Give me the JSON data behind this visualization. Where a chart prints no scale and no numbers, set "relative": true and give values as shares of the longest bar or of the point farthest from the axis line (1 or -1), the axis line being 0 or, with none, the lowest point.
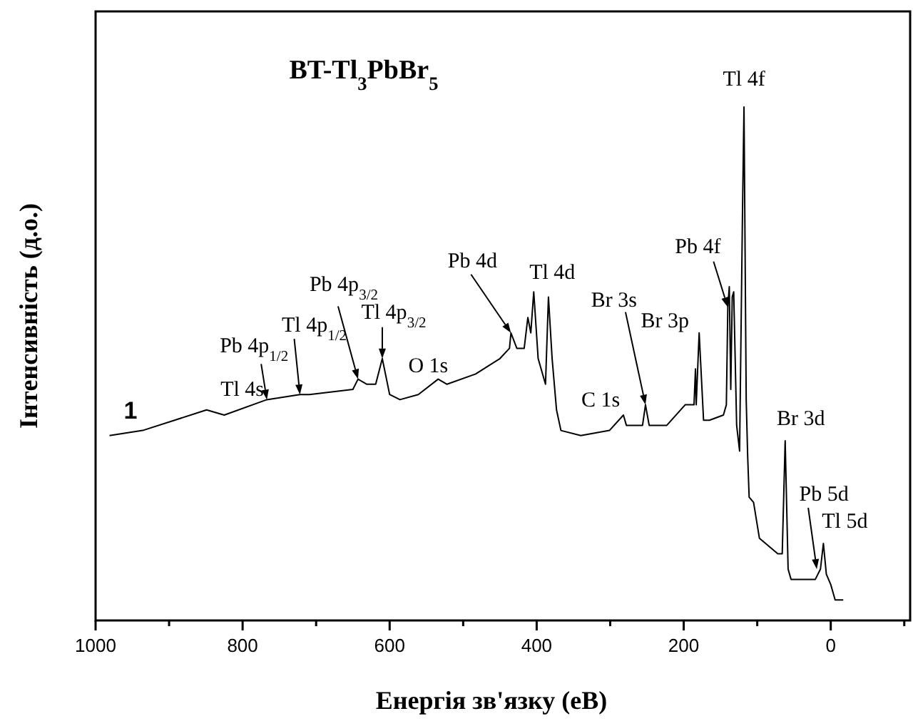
{
  "chart_data": {
    "type": "line",
    "title": "BT-Tl$_{3}$PbBr$_{5}$",
    "xlabel": "Енергія зв'язку (еВ)",
    "ylabel": "Інтенсивність (д.о.)",
    "relative": true,
    "xlim": [
      1000,
      -108
    ],
    "xticks": [
      1000,
      {
        "value": 900,
        "label": null
      },
      800,
      {
        "value": 700,
        "label": null
      },
      600,
      {
        "value": 500,
        "label": null
      },
      400,
      {
        "value": 300,
        "label": null
      },
      200,
      {
        "value": 100,
        "label": null
      },
      0,
      {
        "value": -100,
        "label": null
      }
    ],
    "legend": false,
    "grid": false,
    "marker": "none",
    "line_style": "solid",
    "series": [
      {
        "name": "1",
        "color": "#000000",
        "x": [
          981,
          936,
          849,
          825,
          767,
          722,
          709,
          650,
          643,
          631,
          619,
          610,
          600,
          586,
          561,
          534,
          522,
          483,
          450,
          437,
          435,
          427,
          417,
          412,
          408,
          404,
          398,
          388,
          384,
          379,
          373,
          367,
          340,
          301,
          282,
          278,
          256,
          252,
          247,
          223,
          198,
          186,
          184,
          183,
          179,
          173,
          165,
          146,
          142,
          140,
          138,
          136,
          134,
          132,
          128,
          124,
          120,
          118,
          115,
          113,
          111,
          105,
          97,
          72,
          66,
          62,
          58,
          54,
          21,
          14,
          10,
          6,
          0,
          -6,
          -17
        ],
        "values": [
          0.36,
          0.37,
          0.41,
          0.4,
          0.43,
          0.44,
          0.44,
          0.45,
          0.47,
          0.46,
          0.46,
          0.51,
          0.44,
          0.43,
          0.44,
          0.47,
          0.46,
          0.48,
          0.51,
          0.53,
          0.56,
          0.53,
          0.53,
          0.59,
          0.56,
          0.64,
          0.51,
          0.46,
          0.63,
          0.51,
          0.41,
          0.37,
          0.36,
          0.37,
          0.4,
          0.38,
          0.38,
          0.42,
          0.38,
          0.38,
          0.42,
          0.42,
          0.49,
          0.42,
          0.56,
          0.39,
          0.39,
          0.4,
          0.42,
          0.61,
          0.65,
          0.45,
          0.63,
          0.64,
          0.38,
          0.33,
          0.8,
          1.0,
          0.43,
          0.32,
          0.24,
          0.23,
          0.16,
          0.13,
          0.13,
          0.35,
          0.1,
          0.08,
          0.08,
          0.1,
          0.15,
          0.09,
          0.07,
          0.04,
          0.04
        ]
      }
    ],
    "annotations": [
      {
        "text": "Tl 4s",
        "x": 849,
        "y": 0.41
      },
      {
        "text": "Pb 4p$_{1/2}$",
        "x": 767,
        "y": 0.43
      },
      {
        "text": "Tl 4p$_{1/2}$",
        "x": 722,
        "y": 0.44
      },
      {
        "text": "Pb 4p$_{3/2}$",
        "x": 643,
        "y": 0.47
      },
      {
        "text": "Tl 4p$_{3/2}$",
        "x": 610,
        "y": 0.51
      },
      {
        "text": "O 1s",
        "x": 534,
        "y": 0.47
      },
      {
        "text": "Pb 4d",
        "x": 435,
        "y": 0.56
      },
      {
        "text": "Tl 4d",
        "x": 404,
        "y": 0.64
      },
      {
        "text": "Br 3s",
        "x": 252,
        "y": 0.42
      },
      {
        "text": "C 1s",
        "x": 282,
        "y": 0.4
      },
      {
        "text": "Br 3p",
        "x": 179,
        "y": 0.56
      },
      {
        "text": "Pb 4f",
        "x": 140,
        "y": 0.61
      },
      {
        "text": "Tl 4f",
        "x": 118,
        "y": 1.0
      },
      {
        "text": "Br 3d",
        "x": 62,
        "y": 0.35
      },
      {
        "text": "Pb 5d",
        "x": 19,
        "y": 0.1
      },
      {
        "text": "Tl 5d",
        "x": 10,
        "y": 0.15
      }
    ]
  }
}
